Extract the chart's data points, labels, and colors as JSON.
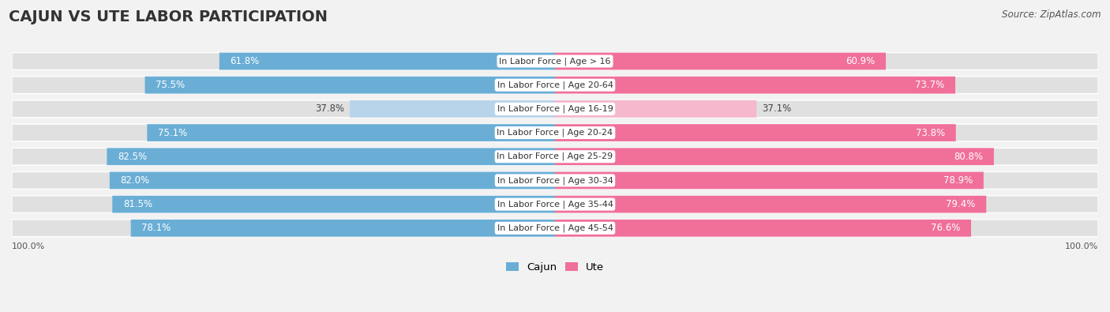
{
  "title": "CAJUN VS UTE LABOR PARTICIPATION",
  "source": "Source: ZipAtlas.com",
  "categories": [
    "In Labor Force | Age > 16",
    "In Labor Force | Age 20-64",
    "In Labor Force | Age 16-19",
    "In Labor Force | Age 20-24",
    "In Labor Force | Age 25-29",
    "In Labor Force | Age 30-34",
    "In Labor Force | Age 35-44",
    "In Labor Force | Age 45-54"
  ],
  "cajun_values": [
    61.8,
    75.5,
    37.8,
    75.1,
    82.5,
    82.0,
    81.5,
    78.1
  ],
  "ute_values": [
    60.9,
    73.7,
    37.1,
    73.8,
    80.8,
    78.9,
    79.4,
    76.6
  ],
  "cajun_color": "#6aaed6",
  "cajun_color_light": "#b8d4ea",
  "ute_color": "#f0709a",
  "ute_color_light": "#f5b8cc",
  "background_color": "#f2f2f2",
  "bar_bg_color": "#e0e0e0",
  "title_fontsize": 14,
  "value_fontsize": 8.5,
  "label_fontsize": 8,
  "legend_cajun": "Cajun",
  "legend_ute": "Ute"
}
